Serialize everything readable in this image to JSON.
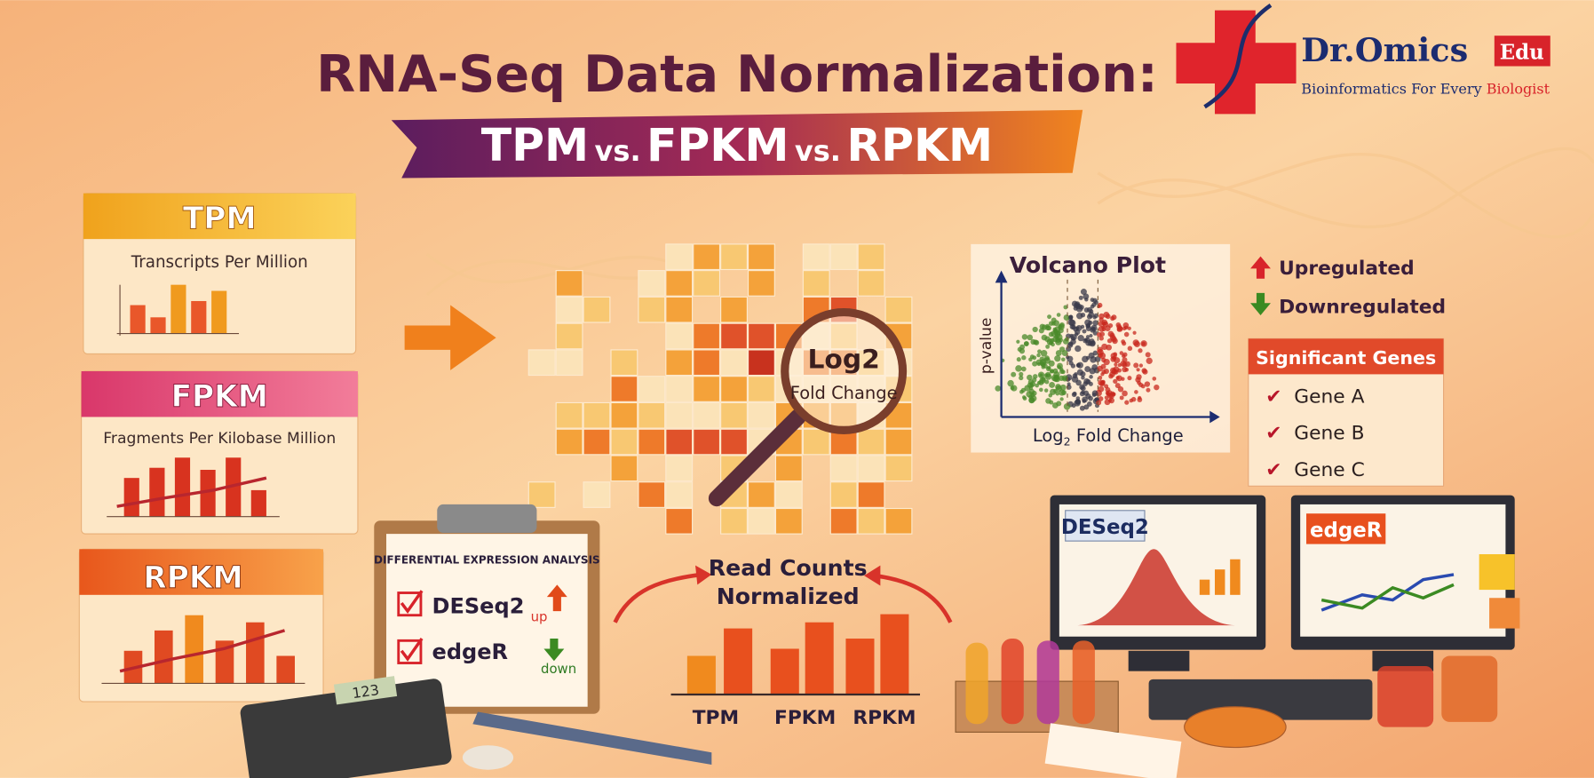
{
  "header": {
    "title": "RNA-Seq Data Normalization:",
    "subtitle": [
      "TPM",
      "vs.",
      "FPKM",
      "vs.",
      "RPKM"
    ]
  },
  "logo": {
    "name": "Dr.Omics",
    "badge": "Edu",
    "tagline": "Bioinformatics For Every",
    "tagline_highlight": "Biologist"
  },
  "cards": [
    {
      "title": "TPM",
      "subtitle": "Transcripts Per Million"
    },
    {
      "title": "FPKM",
      "subtitle": "Fragments Per Kilobase Million"
    },
    {
      "title": "RPKM"
    }
  ],
  "heatmap": {
    "lens": [
      "Log2",
      "Fold Change"
    ]
  },
  "volcano": {
    "title": "Volcano Plot",
    "y_label": "p-value",
    "x_label": "Log",
    "x_label_sub": "2",
    "x_label_rest": " Fold Change"
  },
  "legend": [
    "Upregulated",
    "Downregulated"
  ],
  "significant": {
    "title": "Significant Genes",
    "genes": [
      "Gene A",
      "Gene B",
      "Gene C"
    ]
  },
  "clipboard": {
    "title": "DIFFERENTIAL EXPRESSION ANALYSIS",
    "items": [
      {
        "label": "DESeq2",
        "tag": "up"
      },
      {
        "label": "edgeR",
        "tag": "down"
      }
    ]
  },
  "read_counts": {
    "title": [
      "Read Counts",
      "Normalized"
    ],
    "labels": [
      "TPM",
      "FPKM",
      "RPKM"
    ]
  },
  "monitors": [
    "DESeq2",
    "edgeR"
  ],
  "calculator": "123"
}
